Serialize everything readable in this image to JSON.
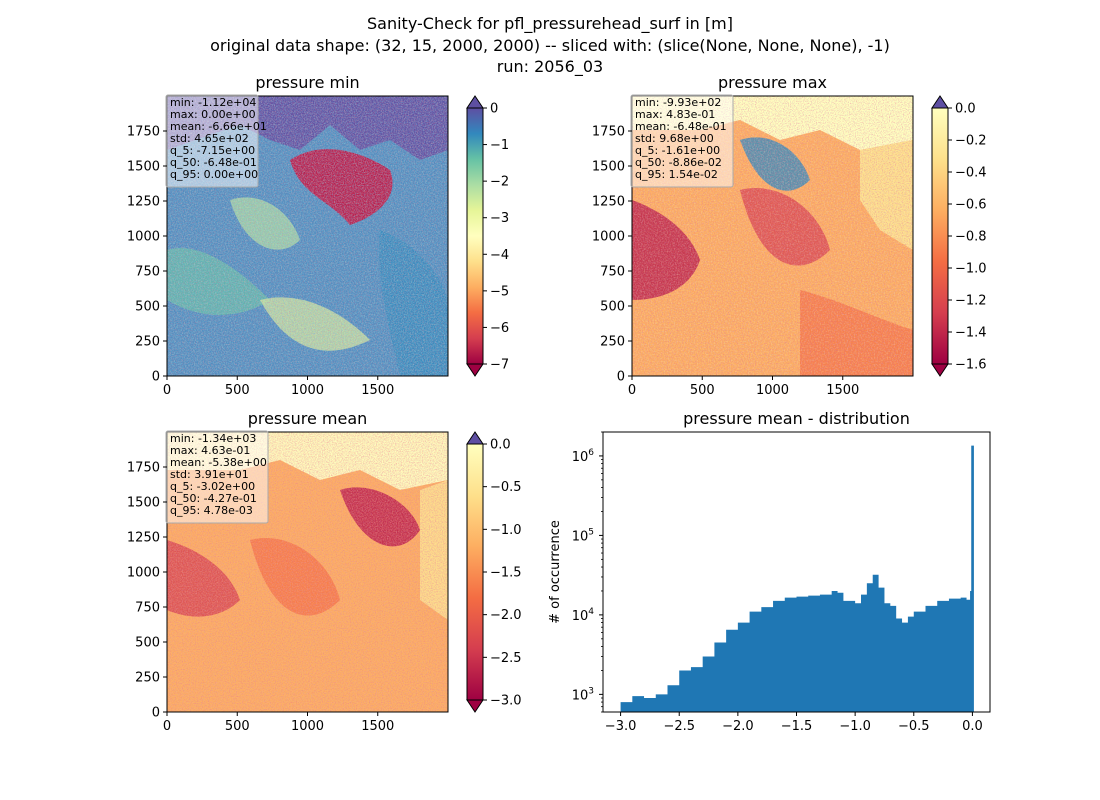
{
  "figure": {
    "title_lines": [
      "Sanity-Check for pfl_pressurehead_surf in [m]",
      "original data shape: (32, 15, 2000, 2000) -- sliced with: (slice(None, None, None), -1)",
      "run: 2056_03"
    ]
  },
  "chart_data": [
    {
      "type": "heatmap",
      "title": "pressure min",
      "xlim": [
        0,
        2000
      ],
      "ylim": [
        0,
        2000
      ],
      "xticks": [
        "0",
        "500",
        "1000",
        "1500"
      ],
      "yticks": [
        "0",
        "250",
        "500",
        "750",
        "1000",
        "1250",
        "1500",
        "1750"
      ],
      "colormap": "Spectral",
      "colorbar": {
        "range": [
          -7,
          0
        ],
        "ticks": [
          "0",
          "−1",
          "−2",
          "−3",
          "−4",
          "−5",
          "−6",
          "−7"
        ],
        "extend": "both",
        "top_color": "#5e4fa2",
        "bottom_color": "#9e0142"
      },
      "stats": [
        "min: -1.12e+04",
        "max: 0.00e+00",
        "mean: -6.66e+01",
        "std: 4.65e+02",
        "q_5: -7.15e+00",
        "q_50: -6.48e-01",
        "q_95: 0.00e+00"
      ]
    },
    {
      "type": "heatmap",
      "title": "pressure max",
      "xlim": [
        0,
        2000
      ],
      "ylim": [
        0,
        2000
      ],
      "xticks": [
        "0",
        "500",
        "1000",
        "1500"
      ],
      "yticks": [
        "0",
        "250",
        "500",
        "750",
        "1000",
        "1250",
        "1500",
        "1750"
      ],
      "colormap": "Spectral",
      "colorbar": {
        "range": [
          -1.6,
          0.0
        ],
        "ticks": [
          "0.0",
          "−0.2",
          "−0.4",
          "−0.6",
          "−0.8",
          "−1.0",
          "−1.2",
          "−1.4",
          "−1.6"
        ],
        "extend": "both",
        "top_color": "#5e4fa2",
        "bottom_color": "#9e0142"
      },
      "stats": [
        "min: -9.93e+02",
        "max: 4.83e-01",
        "mean: -6.48e-01",
        "std: 9.68e+00",
        "q_5: -1.61e+00",
        "q_50: -8.86e-02",
        "q_95: 1.54e-02"
      ]
    },
    {
      "type": "heatmap",
      "title": "pressure mean",
      "xlim": [
        0,
        2000
      ],
      "ylim": [
        0,
        2000
      ],
      "xticks": [
        "0",
        "500",
        "1000",
        "1500"
      ],
      "yticks": [
        "0",
        "250",
        "500",
        "750",
        "1000",
        "1250",
        "1500",
        "1750"
      ],
      "colormap": "Spectral",
      "colorbar": {
        "range": [
          -3.0,
          0.0
        ],
        "ticks": [
          "0.0",
          "−0.5",
          "−1.0",
          "−1.5",
          "−2.0",
          "−2.5",
          "−3.0"
        ],
        "extend": "both",
        "top_color": "#5e4fa2",
        "bottom_color": "#9e0142"
      },
      "stats": [
        "min: -1.34e+03",
        "max: 4.63e-01",
        "mean: -5.38e+00",
        "std: 3.91e+01",
        "q_5: -3.02e+00",
        "q_50: -4.27e-01",
        "q_95: 4.78e-03"
      ]
    },
    {
      "type": "bar",
      "title": "pressure mean - distribution",
      "ylabel": "# of occurrence",
      "yscale": "log",
      "xlim": [
        -3.15,
        0.15
      ],
      "ylim": [
        600,
        2000000
      ],
      "xticks": [
        "−3.0",
        "−2.5",
        "−2.0",
        "−1.5",
        "−1.0",
        "−0.5",
        "0.0"
      ],
      "ytick_exponents": [
        "3",
        "4",
        "5",
        "6"
      ],
      "bar_color": "#1f77b4",
      "histogram": {
        "x": [
          -3.0,
          -2.9,
          -2.8,
          -2.7,
          -2.6,
          -2.5,
          -2.4,
          -2.3,
          -2.2,
          -2.1,
          -2.0,
          -1.9,
          -1.8,
          -1.7,
          -1.6,
          -1.5,
          -1.4,
          -1.3,
          -1.2,
          -1.15,
          -1.1,
          -1.0,
          -0.95,
          -0.9,
          -0.85,
          -0.8,
          -0.75,
          -0.7,
          -0.65,
          -0.6,
          -0.55,
          -0.5,
          -0.4,
          -0.3,
          -0.2,
          -0.1,
          -0.05,
          -0.02,
          -0.01,
          0.0
        ],
        "y": [
          800,
          950,
          900,
          1000,
          1300,
          2000,
          2200,
          3000,
          4500,
          6500,
          8000,
          11000,
          12500,
          15000,
          16500,
          17000,
          17500,
          18000,
          20000,
          19000,
          15000,
          14000,
          18000,
          25000,
          32000,
          22000,
          14000,
          13000,
          9000,
          8000,
          9500,
          11000,
          13000,
          15000,
          16000,
          16500,
          15500,
          20000,
          1350000,
          1350000
        ]
      }
    }
  ]
}
